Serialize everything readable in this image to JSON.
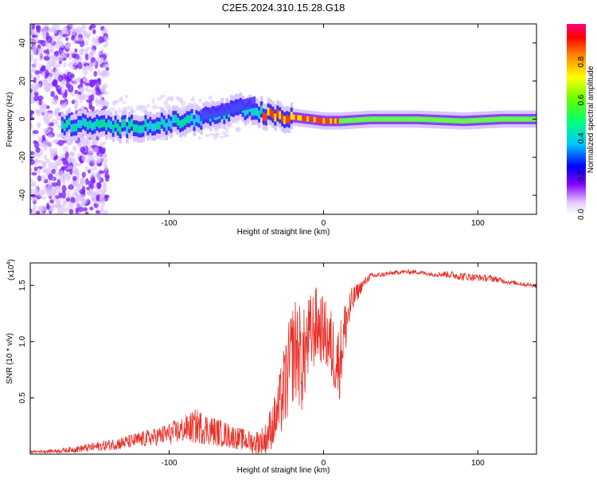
{
  "title": "C2E5.2024.310.15.28.G18",
  "colorbar": {
    "label": "Normalized spectral amplitude",
    "ticks": [
      "0.0",
      "0.2",
      "0.4",
      "0.6",
      "0.8"
    ],
    "tick_values": [
      0.0,
      0.2,
      0.4,
      0.6,
      0.8
    ],
    "range": [
      0,
      1
    ]
  },
  "chart_data": [
    {
      "type": "heatmap",
      "xlabel": "Height of straight line (km)",
      "ylabel": "Frequency (Hz)",
      "xlim": [
        -190,
        138
      ],
      "ylim": [
        -50,
        50
      ],
      "xticks": [
        -100,
        0,
        100
      ],
      "xtick_labels": [
        "-100",
        "0",
        "100"
      ],
      "yticks": [
        -40,
        -20,
        0,
        20,
        40
      ],
      "ytick_labels": [
        "-40",
        "-20",
        "0",
        "20",
        "40"
      ],
      "ridge": [
        {
          "x": -155,
          "f": -3
        },
        {
          "x": -130,
          "f": -4
        },
        {
          "x": -110,
          "f": -3
        },
        {
          "x": -90,
          "f": -1
        },
        {
          "x": -70,
          "f": 2
        },
        {
          "x": -55,
          "f": 5
        },
        {
          "x": -40,
          "f": 3
        },
        {
          "x": -30,
          "f": 1
        },
        {
          "x": -20,
          "f": 1
        },
        {
          "x": -10,
          "f": 0
        },
        {
          "x": 0,
          "f": -1
        },
        {
          "x": 10,
          "f": -1
        },
        {
          "x": 30,
          "f": 0
        },
        {
          "x": 60,
          "f": 0
        },
        {
          "x": 90,
          "f": -1
        },
        {
          "x": 115,
          "f": 0
        },
        {
          "x": 138,
          "f": 0
        }
      ]
    },
    {
      "type": "line",
      "xlabel": "Height of straight line (km)",
      "ylabel": "SNR (10 * v/v)",
      "yscale_label": "(x10",
      "yscale_exp": "4",
      "xlim": [
        -190,
        138
      ],
      "ylim": [
        0,
        1.7
      ],
      "xticks": [
        -100,
        0,
        100
      ],
      "xtick_labels": [
        "-100",
        "0",
        "100"
      ],
      "yticks": [
        0.5,
        1.0,
        1.5
      ],
      "ytick_labels": [
        "0.5",
        "1.0",
        "1.5"
      ],
      "series": [
        {
          "color": "#e8322a",
          "x": [
            -190,
            -170,
            -150,
            -130,
            -110,
            -100,
            -90,
            -82,
            -75,
            -65,
            -55,
            -45,
            -38,
            -30,
            -25,
            -20,
            -17,
            -14,
            -10,
            -5,
            0,
            5,
            10,
            15,
            20,
            25,
            30,
            40,
            50,
            60,
            70,
            80,
            90,
            100,
            110,
            120,
            130,
            138
          ],
          "y": [
            0.02,
            0.03,
            0.06,
            0.1,
            0.15,
            0.18,
            0.22,
            0.25,
            0.22,
            0.18,
            0.14,
            0.1,
            0.12,
            0.35,
            0.6,
            0.9,
            0.95,
            0.8,
            1.0,
            1.15,
            1.1,
            0.95,
            0.8,
            1.2,
            1.4,
            1.5,
            1.58,
            1.6,
            1.62,
            1.62,
            1.6,
            1.6,
            1.58,
            1.57,
            1.56,
            1.53,
            1.51,
            1.5
          ],
          "noise": [
            0.01,
            0.02,
            0.04,
            0.06,
            0.08,
            0.1,
            0.12,
            0.16,
            0.14,
            0.12,
            0.1,
            0.1,
            0.15,
            0.25,
            0.4,
            0.45,
            0.5,
            0.45,
            0.4,
            0.35,
            0.3,
            0.35,
            0.35,
            0.25,
            0.1,
            0.05,
            0.03,
            0.02,
            0.02,
            0.02,
            0.02,
            0.03,
            0.04,
            0.03,
            0.03,
            0.02,
            0.02,
            0.02
          ]
        }
      ]
    }
  ]
}
